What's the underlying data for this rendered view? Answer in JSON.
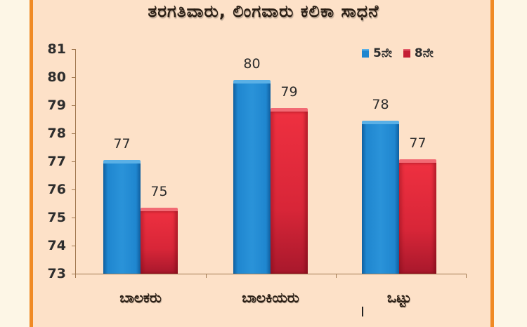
{
  "chart_data": {
    "type": "bar",
    "title": "ತರಗತಿವಾರು, ಲಿಂಗವಾರು ಕಲಿಕಾ ಸಾಧನೆ",
    "xlabel": "",
    "ylabel": "",
    "categories": [
      "ಬಾಲಕರು",
      "ಬಾಲಕಿಯರು",
      "ಒಟ್ಟು"
    ],
    "series": [
      {
        "name": "5ನೇ",
        "color": "#1f86cf",
        "values": [
          77.05,
          79.9,
          78.45
        ],
        "labels": [
          "77",
          "80",
          "78"
        ]
      },
      {
        "name": "8ನೇ",
        "color": "#d82638",
        "values": [
          75.35,
          78.9,
          77.08
        ],
        "labels": [
          "75",
          "79",
          "77"
        ]
      }
    ],
    "ylim": [
      73,
      81
    ],
    "yticks": [
      "81",
      "80",
      "79",
      "78",
      "77",
      "76",
      "75",
      "74",
      "73"
    ],
    "grid": false,
    "legend_position": "top-right"
  },
  "colors": {
    "frame_border": "#f08a24",
    "panel_bg": "#fde1c8",
    "page_bg": "#fdf6e6"
  }
}
